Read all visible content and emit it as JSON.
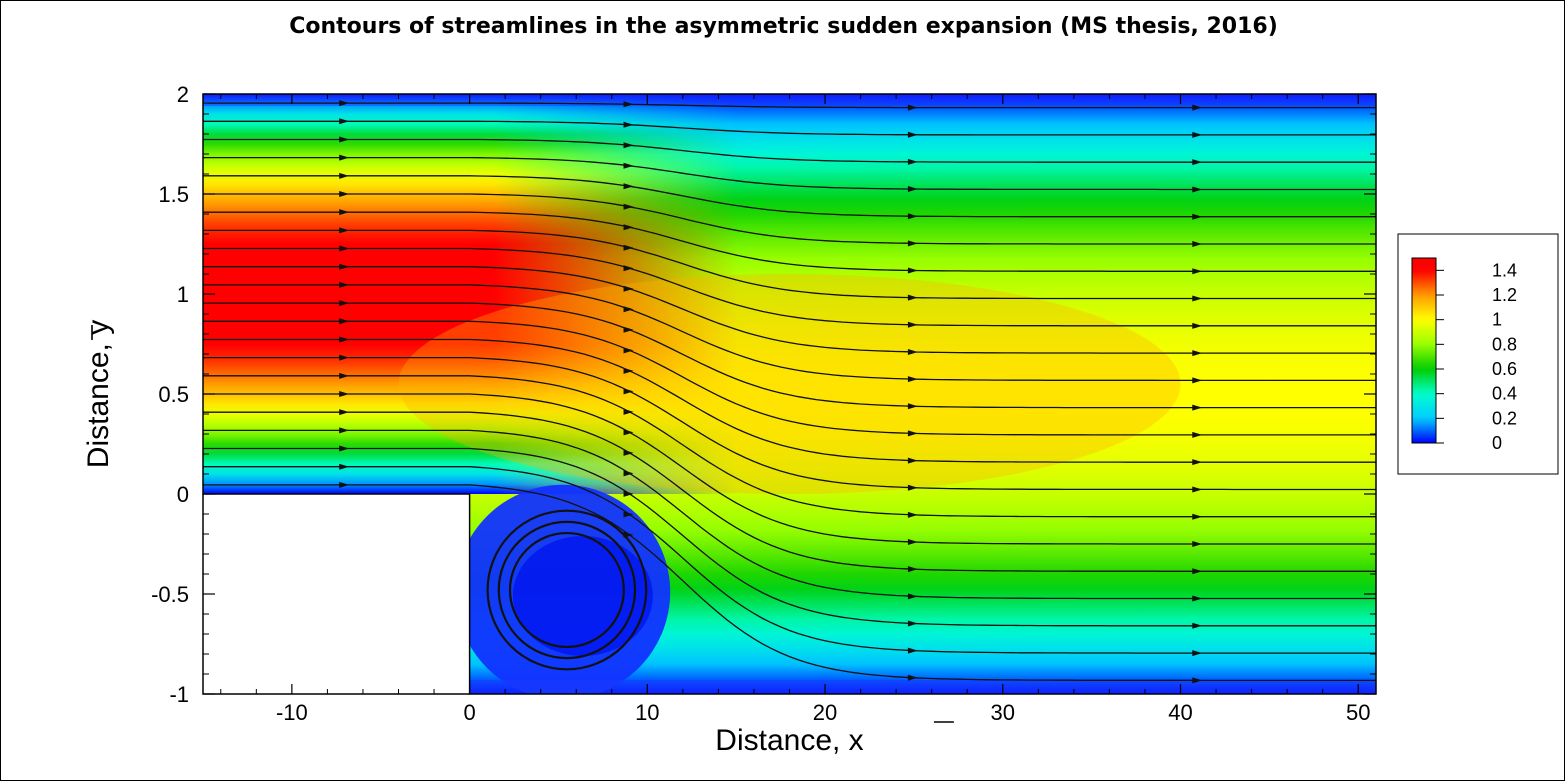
{
  "chart_data": {
    "type": "contour",
    "title": "Contours of streamlines in the asymmetric sudden expansion (MS thesis, 2016)",
    "xlabel": "Distance, x",
    "ylabel": "Distance, y",
    "xlim": [
      -15,
      51
    ],
    "ylim": [
      -1,
      2
    ],
    "x_ticks": [
      -10,
      0,
      10,
      20,
      30,
      40,
      50
    ],
    "y_ticks": [
      -1,
      -0.5,
      0,
      0.5,
      1,
      1.5,
      2
    ],
    "x_tick_labels": [
      "-10",
      "0",
      "10",
      "20",
      "30",
      "40",
      "50"
    ],
    "y_tick_labels": [
      "-1",
      "-0.5",
      "0",
      "0.5",
      "1",
      "1.5",
      "2"
    ],
    "step": {
      "x": 0,
      "y": 0
    },
    "inlet_profile": {
      "y_range": [
        0,
        2
      ],
      "max_value": 1.5
    },
    "outlet_profile": {
      "y_range": [
        -1,
        2
      ],
      "max_value": 1.0
    },
    "recirculation": {
      "x_range": [
        0,
        10.5
      ],
      "y_range": [
        -0.9,
        0
      ]
    },
    "legend": {
      "levels": [
        "1.4",
        "1.2",
        "1",
        "0.8",
        "0.6",
        "0.4",
        "0.2",
        "0"
      ],
      "colors": [
        "#ff0000",
        "#ff9900",
        "#ffff00",
        "#99ff00",
        "#00cc00",
        "#00ffcc",
        "#00ccff",
        "#0000ff"
      ]
    }
  }
}
